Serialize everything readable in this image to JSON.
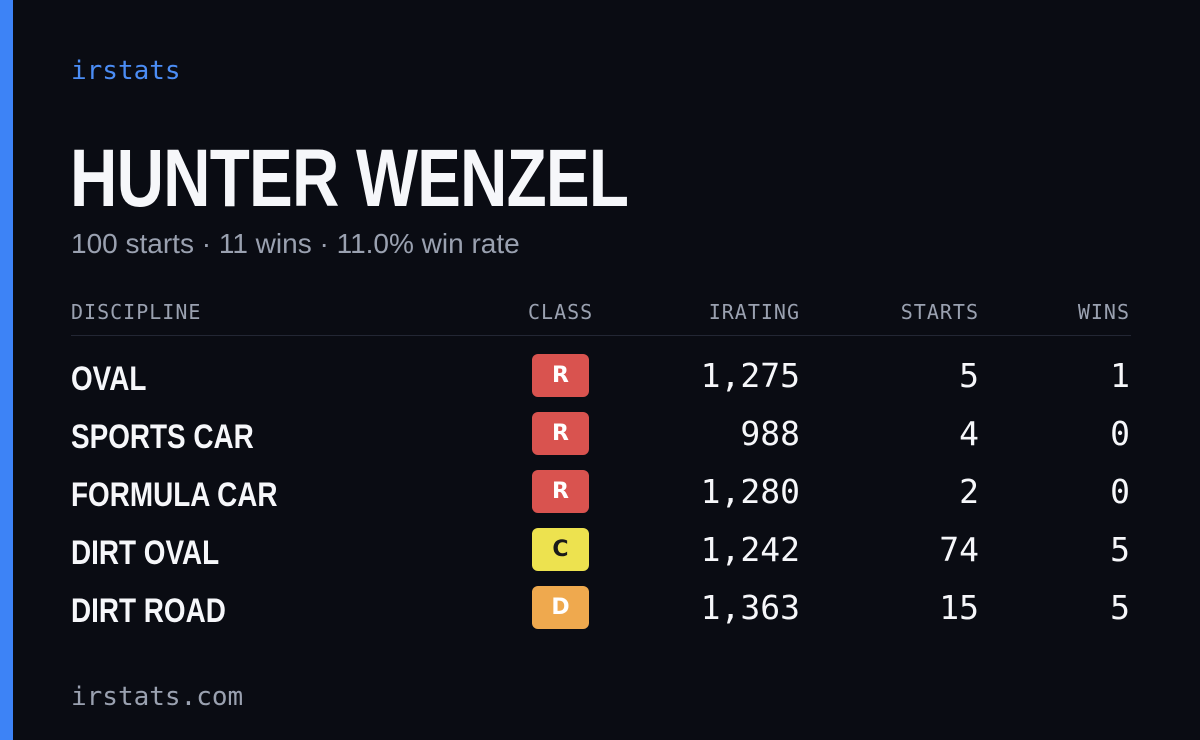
{
  "brand": "irstats",
  "driver": {
    "name": "HUNTER WENZEL",
    "summary": "100 starts · 11 wins · 11.0% win rate"
  },
  "table": {
    "headers": {
      "discipline": "DISCIPLINE",
      "class": "CLASS",
      "irating": "IRATING",
      "starts": "STARTS",
      "wins": "WINS"
    },
    "rows": [
      {
        "discipline": "OVAL",
        "class": "R",
        "class_color": "#d9534f",
        "class_text_color": "#ffffff",
        "irating": "1,275",
        "starts": "5",
        "wins": "1"
      },
      {
        "discipline": "SPORTS CAR",
        "class": "R",
        "class_color": "#d9534f",
        "class_text_color": "#ffffff",
        "irating": "988",
        "starts": "4",
        "wins": "0"
      },
      {
        "discipline": "FORMULA CAR",
        "class": "R",
        "class_color": "#d9534f",
        "class_text_color": "#ffffff",
        "irating": "1,280",
        "starts": "2",
        "wins": "0"
      },
      {
        "discipline": "DIRT OVAL",
        "class": "C",
        "class_color": "#ede24f",
        "class_text_color": "#1a1a1a",
        "irating": "1,242",
        "starts": "74",
        "wins": "5"
      },
      {
        "discipline": "DIRT ROAD",
        "class": "D",
        "class_color": "#efa94e",
        "class_text_color": "#ffffff",
        "irating": "1,363",
        "starts": "15",
        "wins": "5"
      }
    ]
  },
  "footer": "irstats.com",
  "colors": {
    "background": "#0a0c13",
    "accent": "#3d83f6",
    "text": "#f6f7fa",
    "muted": "#9aa1b0"
  }
}
